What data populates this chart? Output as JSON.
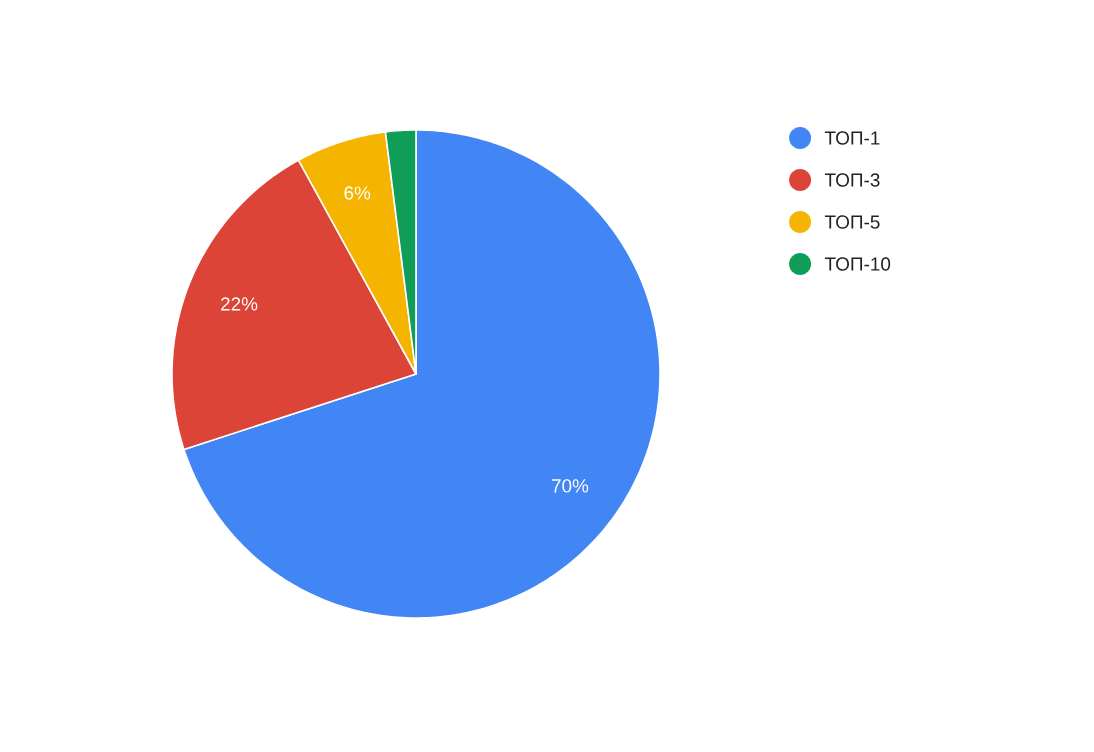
{
  "chart_data": {
    "type": "pie",
    "categories": [
      "ТОП-1",
      "ТОП-3",
      "ТОП-5",
      "ТОП-10"
    ],
    "values": [
      70,
      22,
      6,
      2
    ],
    "colors": [
      "#4285f4",
      "#db4437",
      "#f4b400",
      "#0f9d58"
    ],
    "value_labels": [
      "70%",
      "22%",
      "6%",
      null
    ],
    "legend": "right"
  }
}
